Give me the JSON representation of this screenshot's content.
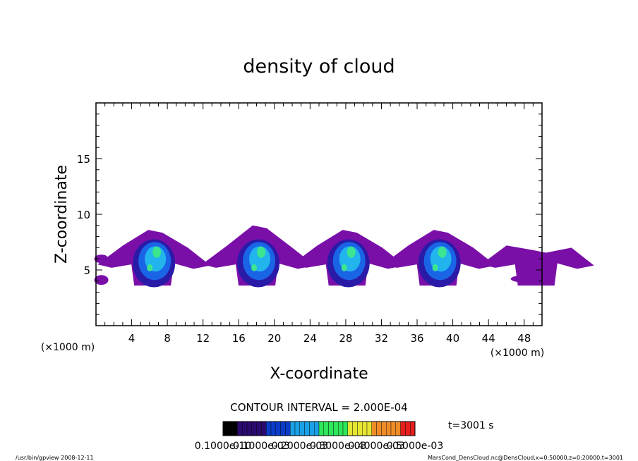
{
  "chart_data": {
    "type": "heatmap",
    "title": "density of cloud",
    "xlabel": "X-coordinate",
    "ylabel": "Z-coordinate",
    "x_unit_left": "(×1000 m)",
    "x_unit_right": "(×1000 m)",
    "xlim": [
      0,
      50
    ],
    "ylim": [
      0,
      20
    ],
    "x_ticks": [
      4,
      8,
      12,
      16,
      20,
      24,
      28,
      32,
      36,
      40,
      44,
      48
    ],
    "y_ticks": [
      5,
      10,
      15
    ],
    "contour_interval": "CONTOUR INTERVAL = 2.000E-04",
    "time_label": "t=3001 s",
    "colorbar": {
      "labels": [
        "0.1000e-10",
        "0.1000e-03",
        "0.2000e-03",
        "0.3000e-03",
        "0.4000e-03",
        "0.5000e-03"
      ],
      "colors": [
        "#000000",
        "#2a0a6e",
        "#0a3cc8",
        "#1aa0e6",
        "#2ee65a",
        "#e6e632",
        "#f08c28",
        "#e61e1e"
      ]
    },
    "clouds": [
      {
        "center_x": 6.5,
        "base_z": 3.6,
        "top_z": 8.6,
        "core_top_z": 7.8
      },
      {
        "center_x": 18.2,
        "base_z": 3.6,
        "top_z": 9.0,
        "core_top_z": 7.6
      },
      {
        "center_x": 28.3,
        "base_z": 3.6,
        "top_z": 8.6,
        "core_top_z": 7.5
      },
      {
        "center_x": 38.5,
        "base_z": 3.6,
        "top_z": 8.6,
        "core_top_z": 7.5
      },
      {
        "center_x": 49.5,
        "base_z": 3.6,
        "top_z": 6.8,
        "core_top_z": 0
      }
    ]
  },
  "footer": {
    "left": "/usr/bin/gpview   2008-12-11",
    "right": "MarsCond_DensCloud.nc@DensCloud,x=0:50000,z=0:20000,t=3001"
  }
}
